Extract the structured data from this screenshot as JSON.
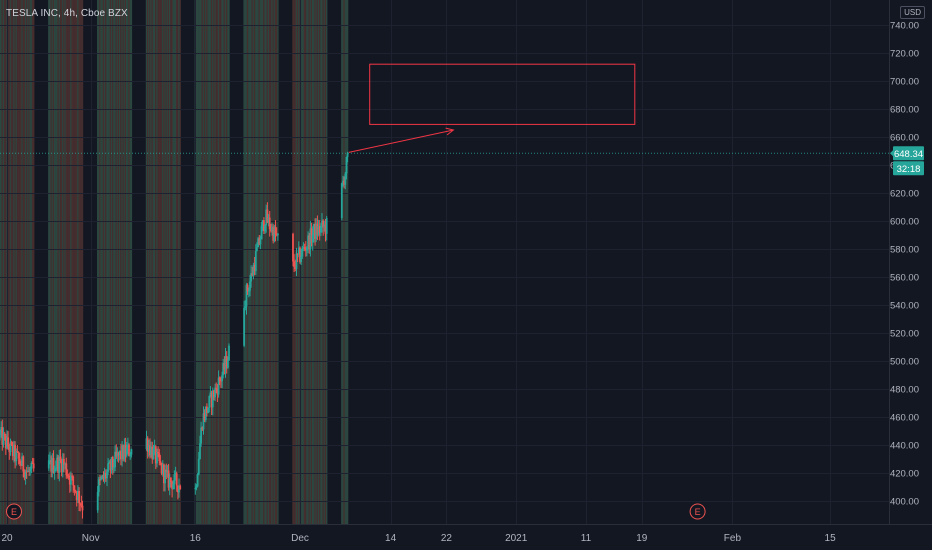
{
  "header": {
    "symbol_line": "TESLA INC, 4h, Cboe BZX",
    "currency": "USD"
  },
  "colors": {
    "background": "#131722",
    "grid": "#1e2230",
    "up": "#26a69a",
    "down": "#ef5350",
    "stripe_up": "#2f4a43",
    "stripe_down": "#4a3030",
    "axis_text": "#b2b5be",
    "price_line": "#26a69a",
    "drawing": "#f23645"
  },
  "events": [
    {
      "label": "E",
      "date": "2020-10-21"
    },
    {
      "label": "E",
      "date": "2021-01-27"
    }
  ],
  "price_labels": {
    "last_price": "648.34",
    "countdown": "32:18"
  },
  "drawings": {
    "arrow": {
      "from": {
        "date": "2020-12-08",
        "price": 649
      },
      "to": {
        "date": "2020-12-23",
        "price": 665
      }
    },
    "rectangle": {
      "from": {
        "date": "2020-12-11",
        "price": 712
      },
      "to": {
        "date": "2021-01-18",
        "price": 669
      }
    }
  },
  "chart_data": {
    "type": "candlestick",
    "timeframe": "4h",
    "x_range": [
      "2020-10-19",
      "2021-02-19"
    ],
    "y_range": [
      392,
      748
    ],
    "y_ticks": [
      "400.00",
      "420.00",
      "440.00",
      "460.00",
      "480.00",
      "500.00",
      "520.00",
      "540.00",
      "560.00",
      "580.00",
      "600.00",
      "620.00",
      "640.00",
      "660.00",
      "680.00",
      "700.00",
      "720.00",
      "740.00"
    ],
    "x_ticks": [
      {
        "date": "2020-10-20",
        "label": "20"
      },
      {
        "date": "2020-11-01",
        "label": "Nov"
      },
      {
        "date": "2020-11-16",
        "label": "16"
      },
      {
        "date": "2020-12-01",
        "label": "Dec"
      },
      {
        "date": "2020-12-14",
        "label": "14"
      },
      {
        "date": "2020-12-22",
        "label": "22"
      },
      {
        "date": "2021-01-01",
        "label": "2021"
      },
      {
        "date": "2021-01-11",
        "label": "11"
      },
      {
        "date": "2021-01-19",
        "label": "19"
      },
      {
        "date": "2021-02-01",
        "label": "Feb"
      },
      {
        "date": "2021-02-15",
        "label": "15"
      }
    ],
    "last_price": 648.34,
    "segments": [
      {
        "from": "2020-10-19",
        "to": "2020-10-23",
        "open": 447,
        "close": 420
      },
      {
        "from": "2020-10-23",
        "to": "2020-10-28",
        "open": 420,
        "close": 428
      },
      {
        "from": "2020-10-28",
        "to": "2020-10-31",
        "open": 428,
        "close": 395
      },
      {
        "from": "2020-10-31",
        "to": "2020-11-05",
        "open": 395,
        "close": 432
      },
      {
        "from": "2020-11-05",
        "to": "2020-11-09",
        "open": 432,
        "close": 443
      },
      {
        "from": "2020-11-09",
        "to": "2020-11-12",
        "open": 443,
        "close": 415
      },
      {
        "from": "2020-11-12",
        "to": "2020-11-16",
        "open": 415,
        "close": 408
      },
      {
        "from": "2020-11-16",
        "to": "2020-11-17",
        "open": 408,
        "close": 458
      },
      {
        "from": "2020-11-17",
        "to": "2020-11-20",
        "open": 458,
        "close": 492
      },
      {
        "from": "2020-11-20",
        "to": "2020-11-24",
        "open": 492,
        "close": 560
      },
      {
        "from": "2020-11-24",
        "to": "2020-11-26",
        "open": 560,
        "close": 603
      },
      {
        "from": "2020-11-26",
        "to": "2020-11-30",
        "open": 603,
        "close": 567
      },
      {
        "from": "2020-11-30",
        "to": "2020-12-03",
        "open": 567,
        "close": 592
      },
      {
        "from": "2020-12-03",
        "to": "2020-12-06",
        "open": 592,
        "close": 599
      },
      {
        "from": "2020-12-06",
        "to": "2020-12-08",
        "open": 599,
        "close": 648
      }
    ]
  }
}
